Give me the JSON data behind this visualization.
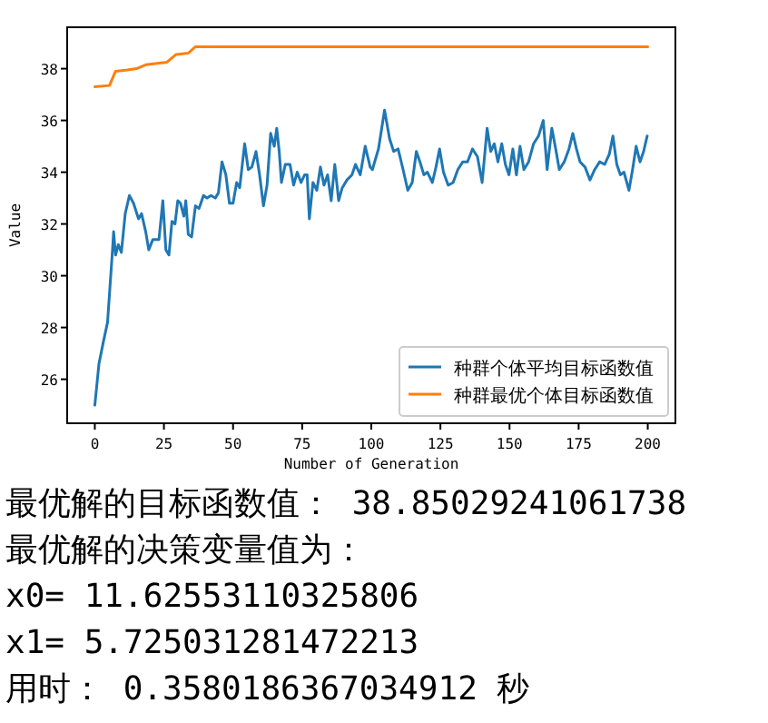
{
  "chart_data": {
    "type": "line",
    "xlabel": "Number of Generation",
    "ylabel": "Value",
    "xlim": [
      -10,
      210
    ],
    "ylim": [
      24.3,
      39.6
    ],
    "xticks": [
      0,
      25,
      50,
      75,
      100,
      125,
      150,
      175,
      200
    ],
    "yticks": [
      26,
      28,
      30,
      32,
      34,
      36,
      38
    ],
    "legend": "bottom right",
    "series": [
      {
        "name": "种群个体平均目标函数值",
        "color": "#1f77b4",
        "x": [
          0,
          1.5,
          3,
          4.6,
          6.4,
          6.8,
          7.5,
          8.5,
          9.6,
          11,
          12.5,
          14,
          15.8,
          16.9,
          18.4,
          19.5,
          21,
          23.2,
          24.6,
          25.7,
          26.8,
          27.9,
          29,
          30,
          31,
          32.2,
          32.9,
          33.8,
          35,
          36.4,
          37.7,
          39.3,
          40.6,
          42,
          43.6,
          44.7,
          46,
          47.4,
          48.7,
          50,
          51.3,
          52.4,
          54.2,
          55.5,
          56.8,
          58.3,
          59.6,
          61,
          62.3,
          63.6,
          64.9,
          65.8,
          66.7,
          67.5,
          68.9,
          70.6,
          71.9,
          73.2,
          74.6,
          75.9,
          76.8,
          77.6,
          78.9,
          80.3,
          81.6,
          82.9,
          84.2,
          85.5,
          86.8,
          88.2,
          89.5,
          91.2,
          93,
          94.3,
          96,
          97.8,
          99.6,
          100.4,
          102.6,
          104.8,
          106.6,
          108.1,
          109.7,
          111.5,
          113.2,
          114.8,
          116.3,
          117.6,
          119,
          120.3,
          122.1,
          123.4,
          124.7,
          126.1,
          127.8,
          129.6,
          131.3,
          133.1,
          134.8,
          136.6,
          138.4,
          140.1,
          141.9,
          143.2,
          144.5,
          145.8,
          147.2,
          148.5,
          149.8,
          151.2,
          152.5,
          153.8,
          155.2,
          156.9,
          158.7,
          160.5,
          162.2,
          163.6,
          165.3,
          166.7,
          168,
          169.8,
          171.5,
          172.9,
          174.2,
          175.5,
          177.3,
          179.1,
          180.8,
          182.6,
          184.4,
          186.1,
          187.4,
          188.8,
          190.1,
          191.4,
          193.2,
          194.5,
          195.8,
          197.2,
          198.5,
          199.8
        ],
        "values": [
          25.0,
          26.6,
          27.4,
          28.2,
          31.0,
          31.7,
          30.8,
          31.2,
          30.9,
          32.4,
          33.1,
          32.8,
          32.2,
          32.4,
          31.7,
          31.0,
          31.4,
          31.4,
          32.9,
          31.0,
          30.8,
          32.1,
          32.0,
          32.9,
          32.8,
          32.3,
          32.9,
          31.6,
          31.5,
          32.7,
          32.6,
          33.1,
          33.0,
          33.1,
          33.0,
          33.2,
          34.4,
          33.9,
          32.8,
          32.8,
          33.6,
          33.4,
          35.1,
          34.1,
          34.2,
          34.8,
          33.9,
          32.7,
          33.5,
          35.5,
          35.0,
          35.7,
          34.8,
          33.6,
          34.3,
          34.3,
          33.5,
          34.0,
          33.6,
          33.9,
          33.9,
          32.2,
          33.6,
          33.3,
          34.2,
          33.5,
          33.9,
          32.9,
          34.3,
          32.9,
          33.4,
          33.7,
          33.9,
          34.3,
          33.9,
          35.0,
          34.2,
          34.1,
          34.9,
          36.4,
          35.3,
          34.8,
          34.9,
          34.1,
          33.3,
          33.6,
          34.8,
          34.4,
          33.9,
          34.0,
          33.6,
          34.2,
          34.9,
          34.0,
          33.5,
          33.6,
          34.1,
          34.4,
          34.4,
          34.9,
          34.6,
          33.6,
          35.7,
          34.8,
          35.1,
          34.4,
          35.1,
          34.3,
          33.9,
          34.9,
          33.9,
          35.0,
          34.1,
          34.4,
          35.1,
          35.4,
          36.0,
          34.1,
          35.7,
          34.9,
          34.1,
          34.4,
          34.9,
          35.5,
          34.9,
          34.4,
          34.2,
          33.7,
          34.1,
          34.4,
          34.3,
          34.7,
          35.4,
          34.3,
          33.9,
          34.0,
          33.3,
          34.1,
          35.0,
          34.4,
          34.8,
          35.4
        ]
      },
      {
        "name": "种群最优个体目标函数值",
        "color": "#ff7f0e",
        "x": [
          0,
          5.3,
          7.5,
          11.8,
          15.1,
          18.4,
          26.1,
          29.4,
          33.8,
          36.4,
          200
        ],
        "values": [
          37.3,
          37.35,
          37.9,
          37.95,
          38.0,
          38.15,
          38.25,
          38.55,
          38.6,
          38.85,
          38.85
        ]
      }
    ],
    "annotations": [
      "最优解的目标函数值：  38.85029241061738",
      "最优解的决策变量值为：",
      "x0= 11.62553110325806",
      "x1= 5.725031281472213",
      "用时：  0.3580186367034912 秒"
    ]
  }
}
